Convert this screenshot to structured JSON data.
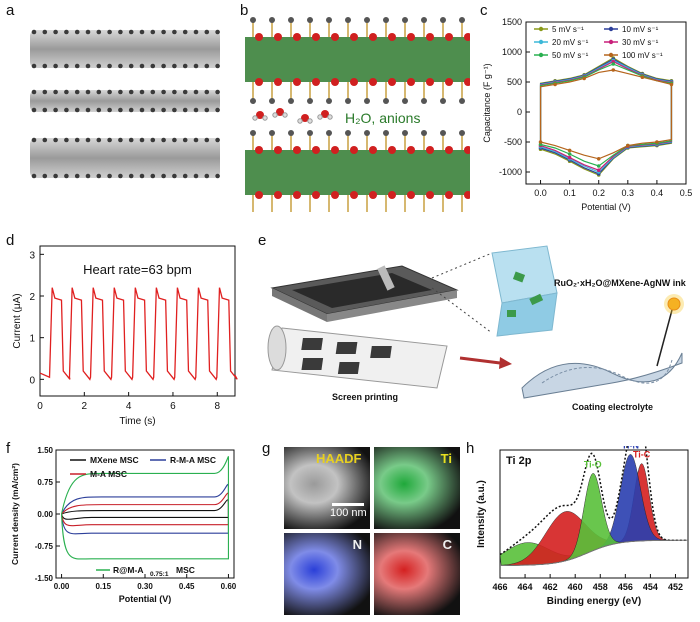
{
  "panel_labels": {
    "a": "a",
    "b": "b",
    "c": "c",
    "d": "d",
    "e": "e",
    "f": "f",
    "g": "g",
    "h": "h"
  },
  "panel_b": {
    "annotation": "H₂O, anions"
  },
  "panel_e": {
    "ink_label": "RuO₂·xH₂O@MXene-AgNW ink",
    "step1": "Screen printing",
    "step2": "Coating electrolyte"
  },
  "panel_g": {
    "tiles": [
      "HAADF",
      "Ti",
      "N",
      "C"
    ],
    "scale_bar": "100 nm",
    "colors": [
      "#9a9a9a",
      "#1fa83a",
      "#2a3fd8",
      "#d42020"
    ]
  },
  "chart_data": [
    {
      "panel": "c",
      "type": "line",
      "xlabel": "Potential (V)",
      "ylabel": "Capacitance (F g⁻¹)",
      "xlim": [
        -0.05,
        0.5
      ],
      "ylim": [
        -1200,
        1500
      ],
      "xticks": [
        "0.0",
        "0.1",
        "0.2",
        "0.3",
        "0.4",
        "0.5"
      ],
      "yticks": [
        "-1000",
        "-500",
        "0",
        "500",
        "1000",
        "1500"
      ],
      "legend": [
        "5 mV s⁻¹",
        "10 mV s⁻¹",
        "20 mV s⁻¹",
        "30 mV s⁻¹",
        "50 mV s⁻¹",
        "100 mV s⁻¹"
      ],
      "series": [
        {
          "name": "5 mV s⁻¹",
          "color": "#8a9a1a",
          "points": [
            [
              0,
              -620
            ],
            [
              0.05,
              -700
            ],
            [
              0.1,
              -820
            ],
            [
              0.15,
              -950
            ],
            [
              0.2,
              -1050
            ],
            [
              0.25,
              -780
            ],
            [
              0.3,
              -600
            ],
            [
              0.35,
              -580
            ],
            [
              0.4,
              -560
            ],
            [
              0.45,
              -520
            ],
            [
              0.45,
              520
            ],
            [
              0.4,
              560
            ],
            [
              0.35,
              640
            ],
            [
              0.3,
              760
            ],
            [
              0.25,
              900
            ],
            [
              0.2,
              760
            ],
            [
              0.15,
              620
            ],
            [
              0.1,
              560
            ],
            [
              0.05,
              520
            ],
            [
              0,
              480
            ]
          ]
        },
        {
          "name": "10 mV s⁻¹",
          "color": "#2c3f9a",
          "points": [
            [
              0,
              -600
            ],
            [
              0.05,
              -680
            ],
            [
              0.1,
              -800
            ],
            [
              0.15,
              -930
            ],
            [
              0.2,
              -1030
            ],
            [
              0.25,
              -770
            ],
            [
              0.3,
              -590
            ],
            [
              0.35,
              -570
            ],
            [
              0.4,
              -550
            ],
            [
              0.45,
              -510
            ],
            [
              0.45,
              510
            ],
            [
              0.4,
              550
            ],
            [
              0.35,
              630
            ],
            [
              0.3,
              750
            ],
            [
              0.25,
              880
            ],
            [
              0.2,
              745
            ],
            [
              0.15,
              610
            ],
            [
              0.1,
              550
            ],
            [
              0.05,
              510
            ],
            [
              0,
              470
            ]
          ]
        },
        {
          "name": "20 mV s⁻¹",
          "color": "#3cb8d8",
          "points": [
            [
              0,
              -580
            ],
            [
              0.05,
              -660
            ],
            [
              0.1,
              -780
            ],
            [
              0.15,
              -900
            ],
            [
              0.2,
              -1000
            ],
            [
              0.25,
              -760
            ],
            [
              0.3,
              -580
            ],
            [
              0.35,
              -560
            ],
            [
              0.4,
              -540
            ],
            [
              0.45,
              -500
            ],
            [
              0.45,
              500
            ],
            [
              0.4,
              540
            ],
            [
              0.35,
              620
            ],
            [
              0.3,
              740
            ],
            [
              0.25,
              860
            ],
            [
              0.2,
              730
            ],
            [
              0.15,
              600
            ],
            [
              0.1,
              540
            ],
            [
              0.05,
              500
            ],
            [
              0,
              460
            ]
          ]
        },
        {
          "name": "30 mV s⁻¹",
          "color": "#c8207a",
          "points": [
            [
              0,
              -560
            ],
            [
              0.05,
              -640
            ],
            [
              0.1,
              -760
            ],
            [
              0.15,
              -880
            ],
            [
              0.2,
              -970
            ],
            [
              0.25,
              -740
            ],
            [
              0.3,
              -570
            ],
            [
              0.35,
              -550
            ],
            [
              0.4,
              -530
            ],
            [
              0.45,
              -490
            ],
            [
              0.45,
              490
            ],
            [
              0.4,
              530
            ],
            [
              0.35,
              610
            ],
            [
              0.3,
              720
            ],
            [
              0.25,
              840
            ],
            [
              0.2,
              715
            ],
            [
              0.15,
              590
            ],
            [
              0.1,
              530
            ],
            [
              0.05,
              490
            ],
            [
              0,
              450
            ]
          ]
        },
        {
          "name": "50 mV s⁻¹",
          "color": "#2ab050",
          "points": [
            [
              0,
              -540
            ],
            [
              0.05,
              -600
            ],
            [
              0.1,
              -700
            ],
            [
              0.15,
              -820
            ],
            [
              0.2,
              -900
            ],
            [
              0.25,
              -720
            ],
            [
              0.3,
              -560
            ],
            [
              0.35,
              -540
            ],
            [
              0.4,
              -520
            ],
            [
              0.45,
              -480
            ],
            [
              0.45,
              480
            ],
            [
              0.4,
              520
            ],
            [
              0.35,
              600
            ],
            [
              0.3,
              700
            ],
            [
              0.25,
              800
            ],
            [
              0.2,
              700
            ],
            [
              0.15,
              580
            ],
            [
              0.1,
              520
            ],
            [
              0.05,
              480
            ],
            [
              0,
              440
            ]
          ]
        },
        {
          "name": "100 mV s⁻¹",
          "color": "#b5651d",
          "points": [
            [
              0,
              -500
            ],
            [
              0.05,
              -560
            ],
            [
              0.1,
              -640
            ],
            [
              0.15,
              -720
            ],
            [
              0.2,
              -780
            ],
            [
              0.25,
              -680
            ],
            [
              0.3,
              -560
            ],
            [
              0.35,
              -520
            ],
            [
              0.4,
              -500
            ],
            [
              0.45,
              -460
            ],
            [
              0.45,
              460
            ],
            [
              0.4,
              520
            ],
            [
              0.35,
              580
            ],
            [
              0.3,
              640
            ],
            [
              0.25,
              700
            ],
            [
              0.2,
              660
            ],
            [
              0.15,
              560
            ],
            [
              0.1,
              500
            ],
            [
              0.05,
              460
            ],
            [
              0,
              420
            ]
          ]
        }
      ]
    },
    {
      "panel": "d",
      "type": "line",
      "xlabel": "Time (s)",
      "ylabel": "Current (μA)",
      "xlim": [
        0,
        8.8
      ],
      "ylim": [
        -0.4,
        3.2
      ],
      "xticks": [
        "0",
        "2",
        "4",
        "6",
        "8"
      ],
      "yticks": [
        "0",
        "1",
        "2",
        "3"
      ],
      "annotation": "Heart rate=63 bpm",
      "series": [
        {
          "name": "",
          "color": "#e02020",
          "beats": [
            0.55,
            1.45,
            2.4,
            3.35,
            4.3,
            5.25,
            6.2,
            7.15,
            8.1
          ],
          "high": 2.05,
          "low": 0.0
        }
      ]
    },
    {
      "panel": "f",
      "type": "line",
      "xlabel": "Potential (V)",
      "ylabel": "Current density (mA/cm²)",
      "xlim": [
        -0.02,
        0.62
      ],
      "ylim": [
        -1.5,
        1.5
      ],
      "xticks": [
        "0.00",
        "0.15",
        "0.30",
        "0.45",
        "0.60"
      ],
      "yticks": [
        "-1.50",
        "-0.75",
        "0.00",
        "0.75",
        "1.50"
      ],
      "legend": [
        "MXene MSC",
        "R-M-A MSC",
        "M-A MSC",
        "R@M-A",
        "0.75:1",
        "MSC"
      ],
      "series": [
        {
          "name": "MXene MSC",
          "color": "#111111",
          "upper": 0.08,
          "lower": -0.08
        },
        {
          "name": "R-M-A MSC",
          "color": "#2c3f9a",
          "upper": 0.4,
          "lower": -0.45
        },
        {
          "name": "M-A MSC",
          "color": "#c8202a",
          "upper": 0.22,
          "lower": -0.25
        },
        {
          "name": "R@M-A",
          "color": "#2ab050",
          "upper": 0.95,
          "lower": -1.05
        }
      ]
    },
    {
      "panel": "h",
      "type": "line",
      "xlabel": "Binding energy (eV)",
      "ylabel": "Intensity (a.u.)",
      "xlim": [
        466,
        451
      ],
      "xticks": [
        "466",
        "464",
        "462",
        "460",
        "458",
        "456",
        "454",
        "452"
      ],
      "title": "Ti 2p",
      "peaks": [
        {
          "name": "Ti-O",
          "center": 458.6,
          "height": 0.55,
          "width": 0.7,
          "color": "#59c03a"
        },
        {
          "name": "Ti-N",
          "center": 455.6,
          "height": 0.62,
          "width": 0.8,
          "color": "#2a3fb0"
        },
        {
          "name": "Ti-C",
          "center": 454.7,
          "height": 0.55,
          "width": 0.6,
          "color": "#d42020"
        },
        {
          "name": "",
          "center": 460.8,
          "height": 0.35,
          "width": 1.6,
          "color": "#d42020"
        },
        {
          "name": "",
          "center": 463.8,
          "height": 0.16,
          "width": 1.8,
          "color": "#59c03a"
        }
      ]
    }
  ]
}
